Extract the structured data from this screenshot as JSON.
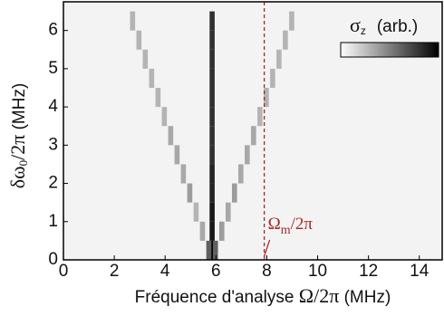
{
  "chart_data": {
    "type": "heatmap",
    "xlabel": {
      "text": "Fréquence d'analyse ",
      "symbol": "Ω/2π",
      "unit": " (MHz)"
    },
    "ylabel": {
      "symbol": "δω",
      "sub": "0",
      "rest": "/2π",
      "unit": " (MHz)"
    },
    "colorbar_label": {
      "symbol": "σ",
      "sub": "z",
      "unit": "(arb.)"
    },
    "marker": {
      "x": 7.9,
      "color": "#a52a2a",
      "symbol": "Ω",
      "sub": "m",
      "rest": "/2π"
    },
    "xlim": [
      0,
      14.9
    ],
    "ylim": [
      0,
      6.75
    ],
    "xticks": [
      0,
      2,
      4,
      6,
      8,
      10,
      12,
      14
    ],
    "yticks": [
      0,
      1,
      2,
      3,
      4,
      5,
      6
    ],
    "x": [
      5.85,
      5.72,
      5.98,
      5.85,
      5.47,
      6.23,
      5.85,
      5.22,
      6.48,
      5.85,
      4.97,
      6.73,
      5.85,
      4.72,
      6.98,
      5.85,
      4.47,
      7.23,
      5.85,
      4.22,
      7.48,
      5.85,
      3.97,
      7.73,
      5.85,
      3.72,
      7.98,
      5.85,
      3.47,
      8.23,
      5.85,
      3.22,
      8.48,
      5.85,
      2.97,
      8.73,
      5.85,
      2.72,
      8.98
    ],
    "y": [
      0.25,
      0.25,
      0.25,
      0.75,
      0.75,
      0.75,
      1.25,
      1.25,
      1.25,
      1.75,
      1.75,
      1.75,
      2.25,
      2.25,
      2.25,
      2.75,
      2.75,
      2.75,
      3.25,
      3.25,
      3.25,
      3.75,
      3.75,
      3.75,
      4.25,
      4.25,
      4.25,
      4.75,
      4.75,
      4.75,
      5.25,
      5.25,
      5.25,
      5.75,
      5.75,
      5.75,
      6.25,
      6.25,
      6.25
    ],
    "z": [
      1,
      0.6,
      0.6,
      0.9,
      0.3,
      0.35,
      0.9,
      0.25,
      0.3,
      0.85,
      0.35,
      0.35,
      0.85,
      0.3,
      0.3,
      0.8,
      0.3,
      0.3,
      0.8,
      0.3,
      0.3,
      0.8,
      0.25,
      0.25,
      0.8,
      0.25,
      0.25,
      0.8,
      0.25,
      0.25,
      0.8,
      0.25,
      0.25,
      0.8,
      0.25,
      0.25,
      0.8,
      0.25,
      0.25
    ]
  }
}
